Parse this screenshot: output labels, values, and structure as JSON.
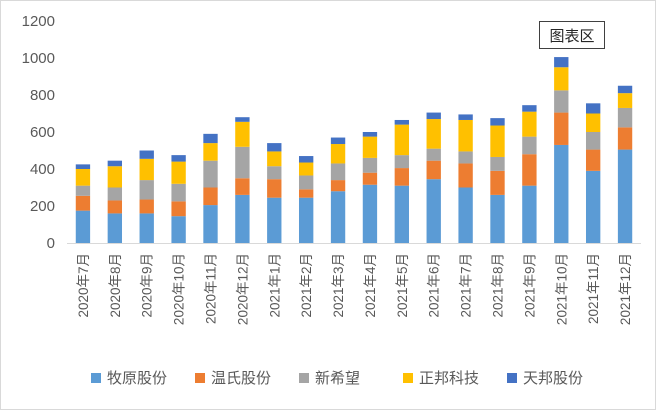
{
  "chart_data": {
    "type": "bar",
    "stacked": true,
    "title": "",
    "xlabel": "",
    "ylabel": "",
    "ylim": [
      0,
      1200
    ],
    "yticks": [
      0,
      200,
      400,
      600,
      800,
      1000,
      1200
    ],
    "grid": false,
    "legend_position": "bottom",
    "categories": [
      "2020年7月",
      "2020年8月",
      "2020年9月",
      "2020年10月",
      "2020年11月",
      "2020年12月",
      "2021年1月",
      "2021年2月",
      "2021年3月",
      "2021年4月",
      "2021年5月",
      "2021年6月",
      "2021年7月",
      "2021年8月",
      "2021年9月",
      "2021年10月",
      "2021年11月",
      "2021年12月"
    ],
    "series": [
      {
        "name": "牧原股份",
        "color": "#5b9bd5",
        "values": [
          175,
          160,
          160,
          145,
          205,
          260,
          245,
          245,
          280,
          315,
          310,
          345,
          300,
          260,
          310,
          530,
          390,
          505
        ]
      },
      {
        "name": "温氏股份",
        "color": "#ed7d31",
        "values": [
          80,
          70,
          75,
          80,
          95,
          90,
          100,
          45,
          60,
          65,
          95,
          100,
          130,
          130,
          170,
          175,
          115,
          120
        ]
      },
      {
        "name": "新希望",
        "color": "#a5a5a5",
        "values": [
          55,
          70,
          105,
          95,
          145,
          170,
          70,
          75,
          90,
          80,
          70,
          65,
          65,
          75,
          95,
          120,
          95,
          105
        ]
      },
      {
        "name": "正邦科技",
        "color": "#ffc000",
        "values": [
          90,
          115,
          115,
          120,
          95,
          135,
          80,
          70,
          105,
          115,
          165,
          160,
          170,
          170,
          135,
          125,
          100,
          80
        ]
      },
      {
        "name": "天邦股份",
        "color": "#4472c4",
        "values": [
          25,
          30,
          45,
          35,
          50,
          25,
          45,
          35,
          35,
          25,
          25,
          35,
          30,
          40,
          35,
          55,
          55,
          40
        ]
      }
    ]
  },
  "tooltip": {
    "label": "图表区"
  }
}
